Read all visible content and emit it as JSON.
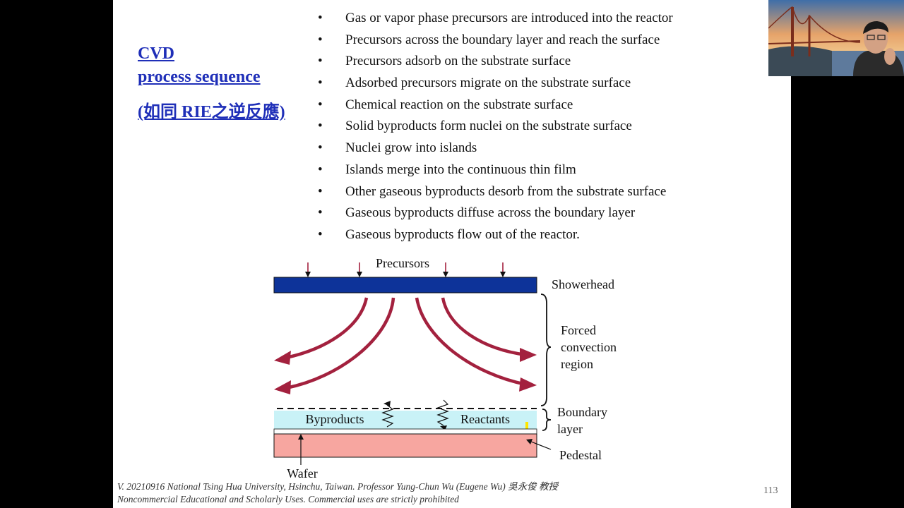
{
  "slide": {
    "title_line1": "CVD",
    "title_line2": "process sequence",
    "title_note": "(如同 RIE之逆反應)",
    "bullets": [
      "Gas or vapor phase precursors are introduced into the reactor",
      "Precursors across the boundary layer and reach the surface",
      "Precursors adsorb on the substrate surface",
      "Adsorbed precursors migrate on the substrate surface",
      "Chemical reaction on the substrate surface",
      "Solid byproducts form nuclei on the substrate surface",
      "Nuclei grow into islands",
      "Islands merge into the continuous thin film",
      "Other gaseous byproducts desorb from the substrate surface",
      "Gaseous byproducts diffuse across the boundary layer",
      "Gaseous byproducts flow out of the reactor."
    ],
    "bullet_symbol": "•",
    "diagram": {
      "precursors": "Precursors",
      "showerhead": "Showerhead",
      "forced_1": "Forced",
      "forced_2": "convection",
      "forced_3": "region",
      "boundary_1": "Boundary",
      "boundary_2": "layer",
      "byproducts": "Byproducts",
      "reactants": "Reactants",
      "pedestal": "Pedestal",
      "wafer": "Wafer"
    },
    "footer_line1": "V. 20210916 National Tsing Hua University, Hsinchu, Taiwan. Professor Yung-Chun Wu (Eugene Wu) 吳永俊 教授",
    "footer_line2": "Noncommercial Educational and Scholarly Uses. Commercial uses are strictly prohibited",
    "page_number": "113"
  },
  "colors": {
    "title": "#1f2fb8",
    "showerhead": "#0d3399",
    "flow_arrow": "#a3213e",
    "boundary_layer": "#c9f2f7",
    "pedestal": "#f7a6a0",
    "background": "#000000"
  }
}
